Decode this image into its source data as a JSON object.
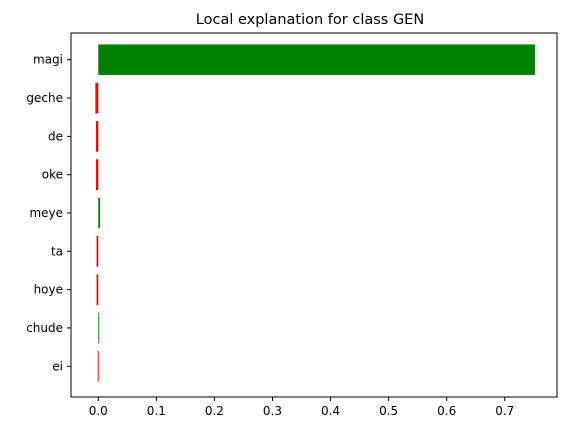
{
  "chart_data": {
    "type": "bar",
    "orientation": "horizontal",
    "title": "Local explanation for class GEN",
    "xlabel": "",
    "ylabel": "",
    "xlim": [
      -0.047,
      0.79
    ],
    "xticks": [
      0.0,
      0.1,
      0.2,
      0.3,
      0.4,
      0.5,
      0.6,
      0.7
    ],
    "xtick_labels": [
      "0.0",
      "0.1",
      "0.2",
      "0.3",
      "0.4",
      "0.5",
      "0.6",
      "0.7"
    ],
    "grid": false,
    "legend": "none",
    "colors": {
      "positive": "#008000",
      "negative": "#ff0000"
    },
    "categories": [
      "magi",
      "geche",
      "de",
      "oke",
      "meye",
      "ta",
      "hoye",
      "chude",
      "ei"
    ],
    "values": [
      0.752,
      -0.005,
      -0.004,
      -0.004,
      0.003,
      -0.003,
      -0.003,
      0.001,
      -0.001
    ]
  }
}
